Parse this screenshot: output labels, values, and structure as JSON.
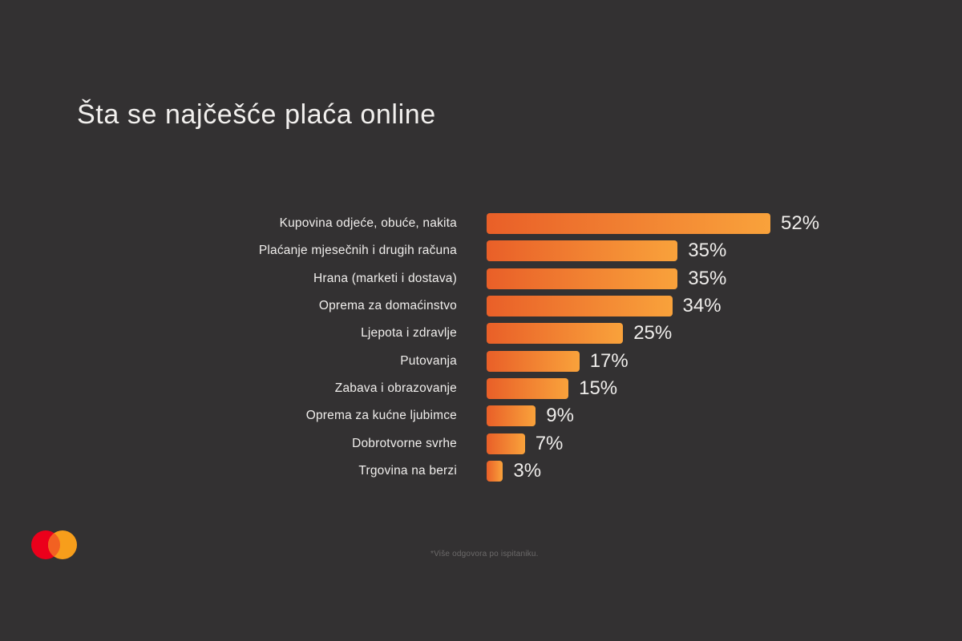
{
  "title": "Šta se najčešće plaća online",
  "footnote": "*Više odgovora po ispitaniku.",
  "logo": {
    "name": "mastercard-logo",
    "red": "#EB001B",
    "orange": "#F79E1B",
    "overlap": "#F26122"
  },
  "colors": {
    "background": "#333132",
    "title_text": "#F2F0EE",
    "label_text": "#F0EEEC",
    "value_text": "#EFEDEB",
    "footnote_text": "#6B6969",
    "bar_gradient_start": "#E95F28",
    "bar_gradient_end": "#F9A23B"
  },
  "chart_data": {
    "type": "bar",
    "orientation": "horizontal",
    "title": "Šta se najčešće plaća online",
    "unit": "%",
    "xlim": [
      0,
      52
    ],
    "grid": false,
    "legend": false,
    "categories": [
      "Kupovina odjeće, obuće, nakita",
      "Plaćanje mjesečnih i drugih računa",
      "Hrana (marketi i dostava)",
      "Oprema za domaćinstvo",
      "Ljepota i zdravlje",
      "Putovanja",
      "Zabava i obrazovanje",
      "Oprema za kućne ljubimce",
      "Dobrotvorne svrhe",
      "Trgovina na berzi"
    ],
    "values": [
      52,
      35,
      35,
      34,
      25,
      17,
      15,
      9,
      7,
      3
    ],
    "value_labels": [
      "52%",
      "35%",
      "35%",
      "34%",
      "25%",
      "17%",
      "15%",
      "9%",
      "7%",
      "3%"
    ]
  }
}
